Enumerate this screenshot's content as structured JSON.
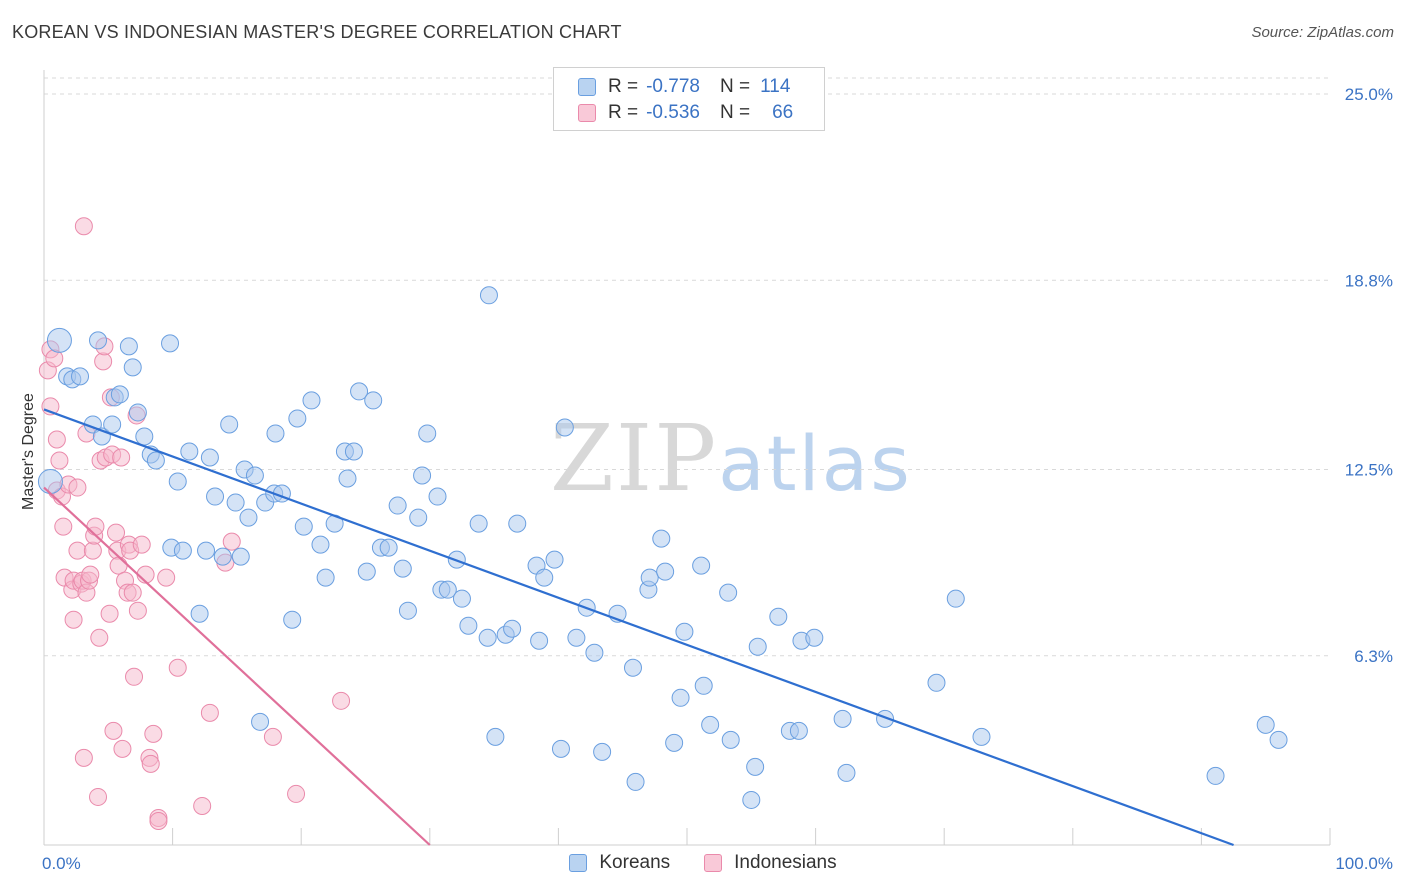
{
  "header": {
    "title": "KOREAN VS INDONESIAN MASTER'S DEGREE CORRELATION CHART",
    "source": "Source: ZipAtlas.com"
  },
  "watermark": {
    "zip": "ZIP",
    "atlas": "atlas"
  },
  "legend_top": {
    "rows": [
      {
        "r_label": "R =",
        "r_value": "-0.778",
        "n_label": "N =",
        "n_value": "114"
      },
      {
        "r_label": "R =",
        "r_value": "-0.536",
        "n_label": "N =",
        "n_value": "66"
      }
    ]
  },
  "legend_bottom": {
    "items": [
      {
        "label": "Koreans"
      },
      {
        "label": "Indonesians"
      }
    ]
  },
  "colors": {
    "korean_fill": "#a9c8ee",
    "korean_stroke": "#6a9fe0",
    "korean_line": "#2f6fd0",
    "indonesian_fill": "#f6b8cc",
    "indonesian_stroke": "#ea8aab",
    "indonesian_line": "#e0709a",
    "grid": "#d9d9d9",
    "axis_text": "#3b73c4"
  },
  "chart_data": {
    "type": "scatter",
    "title": "KOREAN VS INDONESIAN MASTER'S DEGREE CORRELATION CHART",
    "xlabel": "",
    "ylabel": "Master's Degree",
    "xlim": [
      0,
      100
    ],
    "ylim": [
      0,
      25.8
    ],
    "x_tick_labels": [
      "0.0%",
      "100.0%"
    ],
    "y_ticks": [
      6.3,
      12.5,
      18.8,
      25.0
    ],
    "y_tick_labels": [
      "6.3%",
      "12.5%",
      "18.8%",
      "25.0%"
    ],
    "grid": true,
    "legend_position": "top-center",
    "series": [
      {
        "name": "Koreans",
        "R": -0.778,
        "N": 114,
        "trend": {
          "x": [
            0,
            92.5
          ],
          "y": [
            14.5,
            0
          ]
        },
        "points": [
          [
            0.5,
            12.1
          ],
          [
            1.2,
            16.8
          ],
          [
            1.8,
            15.6
          ],
          [
            2.2,
            15.5
          ],
          [
            2.8,
            15.6
          ],
          [
            4.2,
            16.8
          ],
          [
            3.8,
            14.0
          ],
          [
            4.5,
            13.6
          ],
          [
            5.5,
            14.9
          ],
          [
            5.3,
            14.0
          ],
          [
            5.9,
            15.0
          ],
          [
            6.6,
            16.6
          ],
          [
            6.9,
            15.9
          ],
          [
            7.3,
            14.4
          ],
          [
            7.8,
            13.6
          ],
          [
            8.3,
            13.0
          ],
          [
            8.7,
            12.8
          ],
          [
            9.9,
            9.9
          ],
          [
            9.8,
            16.7
          ],
          [
            10.4,
            12.1
          ],
          [
            10.8,
            9.8
          ],
          [
            11.3,
            13.1
          ],
          [
            12.1,
            7.7
          ],
          [
            12.6,
            9.8
          ],
          [
            12.9,
            12.9
          ],
          [
            13.3,
            11.6
          ],
          [
            13.9,
            9.6
          ],
          [
            14.4,
            14.0
          ],
          [
            14.9,
            11.4
          ],
          [
            15.3,
            9.6
          ],
          [
            15.6,
            12.5
          ],
          [
            15.9,
            10.9
          ],
          [
            16.4,
            12.3
          ],
          [
            16.8,
            4.1
          ],
          [
            17.2,
            11.4
          ],
          [
            17.9,
            11.7
          ],
          [
            18.0,
            13.7
          ],
          [
            18.5,
            11.7
          ],
          [
            19.3,
            7.5
          ],
          [
            19.7,
            14.2
          ],
          [
            20.2,
            10.6
          ],
          [
            20.8,
            14.8
          ],
          [
            21.5,
            10.0
          ],
          [
            21.9,
            8.9
          ],
          [
            22.6,
            10.7
          ],
          [
            23.4,
            13.1
          ],
          [
            23.6,
            12.2
          ],
          [
            24.1,
            13.1
          ],
          [
            24.5,
            15.1
          ],
          [
            25.1,
            9.1
          ],
          [
            25.6,
            14.8
          ],
          [
            26.2,
            9.9
          ],
          [
            26.8,
            9.9
          ],
          [
            27.5,
            11.3
          ],
          [
            27.9,
            9.2
          ],
          [
            28.3,
            7.8
          ],
          [
            29.1,
            10.9
          ],
          [
            29.4,
            12.3
          ],
          [
            29.8,
            13.7
          ],
          [
            30.6,
            11.6
          ],
          [
            30.9,
            8.5
          ],
          [
            31.4,
            8.5
          ],
          [
            32.1,
            9.5
          ],
          [
            32.5,
            8.2
          ],
          [
            33.0,
            7.3
          ],
          [
            33.8,
            10.7
          ],
          [
            34.6,
            18.3
          ],
          [
            34.5,
            6.9
          ],
          [
            35.1,
            3.6
          ],
          [
            35.9,
            7.0
          ],
          [
            36.4,
            7.2
          ],
          [
            36.8,
            10.7
          ],
          [
            38.3,
            9.3
          ],
          [
            38.5,
            6.8
          ],
          [
            38.9,
            8.9
          ],
          [
            39.7,
            9.5
          ],
          [
            40.2,
            3.2
          ],
          [
            40.5,
            13.9
          ],
          [
            41.4,
            6.9
          ],
          [
            42.2,
            7.9
          ],
          [
            42.8,
            6.4
          ],
          [
            43.4,
            3.1
          ],
          [
            44.6,
            7.7
          ],
          [
            45.8,
            5.9
          ],
          [
            46.0,
            2.1
          ],
          [
            47.0,
            8.5
          ],
          [
            47.1,
            8.9
          ],
          [
            48.0,
            10.2
          ],
          [
            48.3,
            9.1
          ],
          [
            49.0,
            3.4
          ],
          [
            49.5,
            4.9
          ],
          [
            49.8,
            7.1
          ],
          [
            51.1,
            9.3
          ],
          [
            51.3,
            5.3
          ],
          [
            51.8,
            4.0
          ],
          [
            53.2,
            8.4
          ],
          [
            53.4,
            3.5
          ],
          [
            55.0,
            1.5
          ],
          [
            55.3,
            2.6
          ],
          [
            55.5,
            6.6
          ],
          [
            57.1,
            7.6
          ],
          [
            58.0,
            3.8
          ],
          [
            58.7,
            3.8
          ],
          [
            58.9,
            6.8
          ],
          [
            59.9,
            6.9
          ],
          [
            62.1,
            4.2
          ],
          [
            62.4,
            2.4
          ],
          [
            65.4,
            4.2
          ],
          [
            69.4,
            5.4
          ],
          [
            70.9,
            8.2
          ],
          [
            72.9,
            3.6
          ],
          [
            91.1,
            2.3
          ],
          [
            95.0,
            4.0
          ],
          [
            96.0,
            3.5
          ]
        ]
      },
      {
        "name": "Indonesians",
        "R": -0.536,
        "N": 66,
        "trend": {
          "x": [
            0,
            30
          ],
          "y": [
            11.9,
            0
          ]
        },
        "points": [
          [
            0.3,
            15.8
          ],
          [
            0.5,
            16.5
          ],
          [
            0.5,
            14.6
          ],
          [
            0.8,
            16.2
          ],
          [
            1.0,
            13.5
          ],
          [
            1.0,
            11.8
          ],
          [
            1.2,
            12.8
          ],
          [
            1.4,
            11.6
          ],
          [
            1.5,
            10.6
          ],
          [
            1.6,
            8.9
          ],
          [
            1.9,
            12.0
          ],
          [
            2.2,
            8.5
          ],
          [
            2.3,
            8.8
          ],
          [
            2.3,
            7.5
          ],
          [
            2.6,
            9.8
          ],
          [
            2.6,
            11.9
          ],
          [
            2.9,
            8.7
          ],
          [
            3.0,
            8.8
          ],
          [
            3.1,
            20.6
          ],
          [
            3.1,
            2.9
          ],
          [
            3.3,
            8.4
          ],
          [
            3.3,
            13.7
          ],
          [
            3.5,
            8.8
          ],
          [
            3.6,
            9.0
          ],
          [
            3.8,
            9.8
          ],
          [
            3.9,
            10.3
          ],
          [
            4.0,
            10.6
          ],
          [
            4.2,
            1.6
          ],
          [
            4.3,
            6.9
          ],
          [
            4.4,
            12.8
          ],
          [
            4.6,
            16.1
          ],
          [
            4.7,
            16.6
          ],
          [
            4.8,
            12.9
          ],
          [
            5.1,
            7.7
          ],
          [
            5.2,
            14.9
          ],
          [
            5.3,
            13.0
          ],
          [
            5.4,
            3.8
          ],
          [
            5.6,
            10.4
          ],
          [
            5.7,
            9.8
          ],
          [
            5.8,
            9.3
          ],
          [
            6.0,
            12.9
          ],
          [
            6.1,
            3.2
          ],
          [
            6.3,
            8.8
          ],
          [
            6.5,
            8.4
          ],
          [
            6.6,
            10.0
          ],
          [
            6.7,
            9.8
          ],
          [
            6.9,
            8.4
          ],
          [
            7.0,
            5.6
          ],
          [
            7.2,
            14.3
          ],
          [
            7.3,
            7.8
          ],
          [
            7.6,
            10.0
          ],
          [
            7.9,
            9.0
          ],
          [
            8.2,
            2.9
          ],
          [
            8.3,
            2.7
          ],
          [
            8.5,
            3.7
          ],
          [
            8.9,
            0.9
          ],
          [
            8.9,
            0.8
          ],
          [
            9.5,
            8.9
          ],
          [
            10.4,
            5.9
          ],
          [
            12.3,
            1.3
          ],
          [
            12.9,
            4.4
          ],
          [
            14.1,
            9.4
          ],
          [
            14.6,
            10.1
          ],
          [
            17.8,
            3.6
          ],
          [
            19.6,
            1.7
          ],
          [
            23.1,
            4.8
          ]
        ]
      }
    ]
  }
}
